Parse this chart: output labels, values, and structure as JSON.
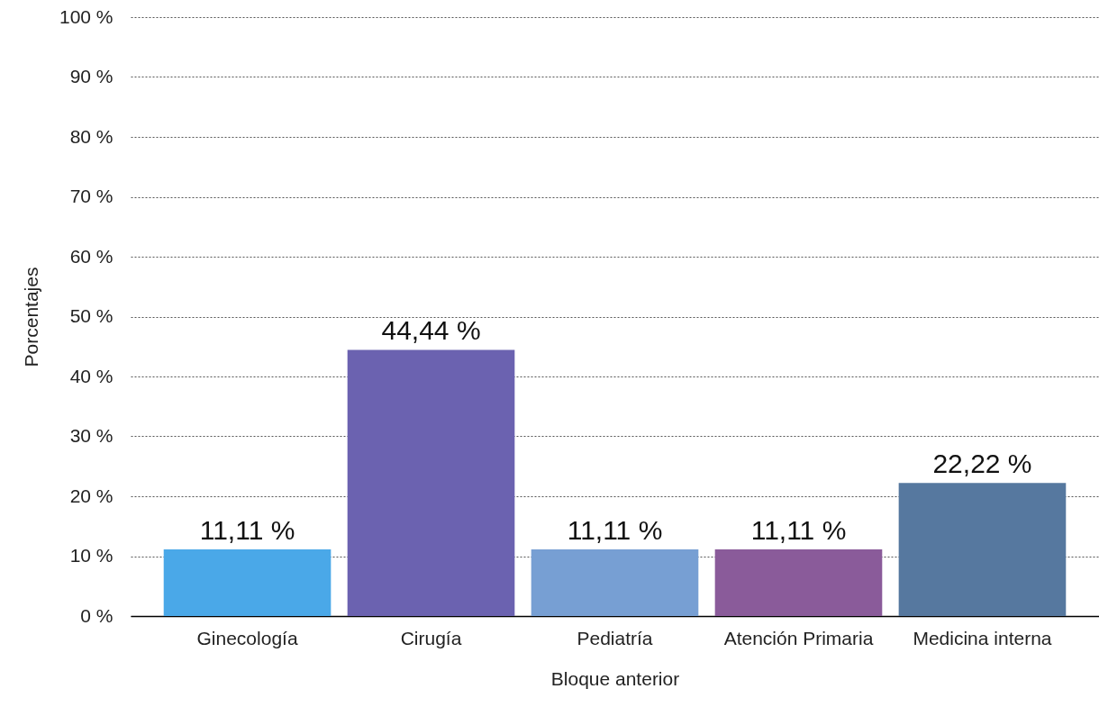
{
  "chart_data": {
    "type": "bar",
    "xlabel": "Bloque anterior",
    "ylabel": "Porcentajes",
    "categories": [
      "Ginecología",
      "Cirugía",
      "Pediatría",
      "Atención Primaria",
      "Medicina interna"
    ],
    "values": [
      11.11,
      44.44,
      11.11,
      11.11,
      22.22
    ],
    "value_labels": [
      "11,11 %",
      "44,44 %",
      "11,11 %",
      "11,11 %",
      "22,22 %"
    ],
    "colors": [
      "#4aa8e8",
      "#6b62b0",
      "#779fd3",
      "#8a5b9a",
      "#56789f"
    ],
    "ylim": [
      0,
      100
    ],
    "yticks": [
      {
        "value": 0,
        "label": "0 %"
      },
      {
        "value": 10,
        "label": "10 %"
      },
      {
        "value": 20,
        "label": "20 %"
      },
      {
        "value": 30,
        "label": "30 %"
      },
      {
        "value": 40,
        "label": "40 %"
      },
      {
        "value": 50,
        "label": "50 %"
      },
      {
        "value": 60,
        "label": "60 %"
      },
      {
        "value": 70,
        "label": "70 %"
      },
      {
        "value": 80,
        "label": "80 %"
      },
      {
        "value": 90,
        "label": "90 %"
      },
      {
        "value": 100,
        "label": "100 %"
      }
    ],
    "grid": "y"
  }
}
